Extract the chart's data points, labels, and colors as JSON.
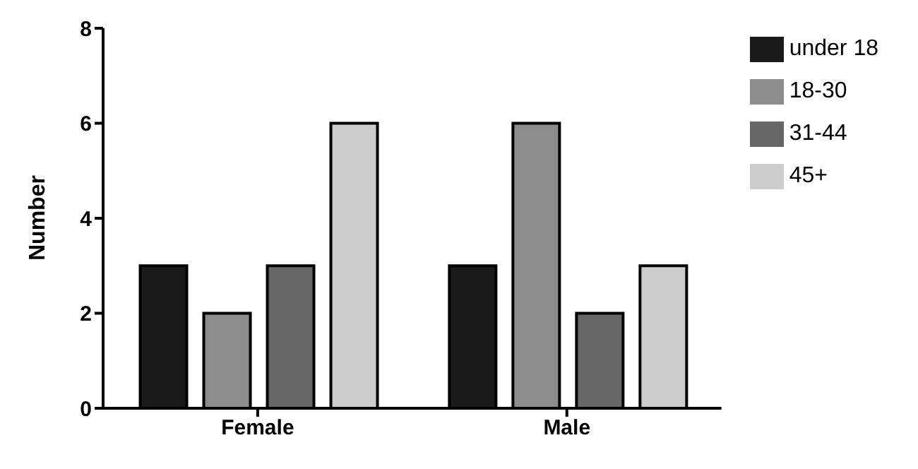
{
  "chart_data": {
    "type": "bar",
    "ylabel": "Number",
    "categories": [
      "Female",
      "Male"
    ],
    "series": [
      {
        "name": "under 18",
        "color": "#1a1a1a",
        "values": [
          3,
          3
        ]
      },
      {
        "name": "18-30",
        "color": "#8c8c8c",
        "values": [
          2,
          6
        ]
      },
      {
        "name": "31-44",
        "color": "#666666",
        "values": [
          3,
          2
        ]
      },
      {
        "name": "45+",
        "color": "#cccccc",
        "values": [
          6,
          3
        ]
      }
    ],
    "ylim": [
      0,
      8
    ],
    "yticks": [
      0,
      2,
      4,
      6,
      8
    ],
    "grid": false,
    "legend": "top right"
  }
}
